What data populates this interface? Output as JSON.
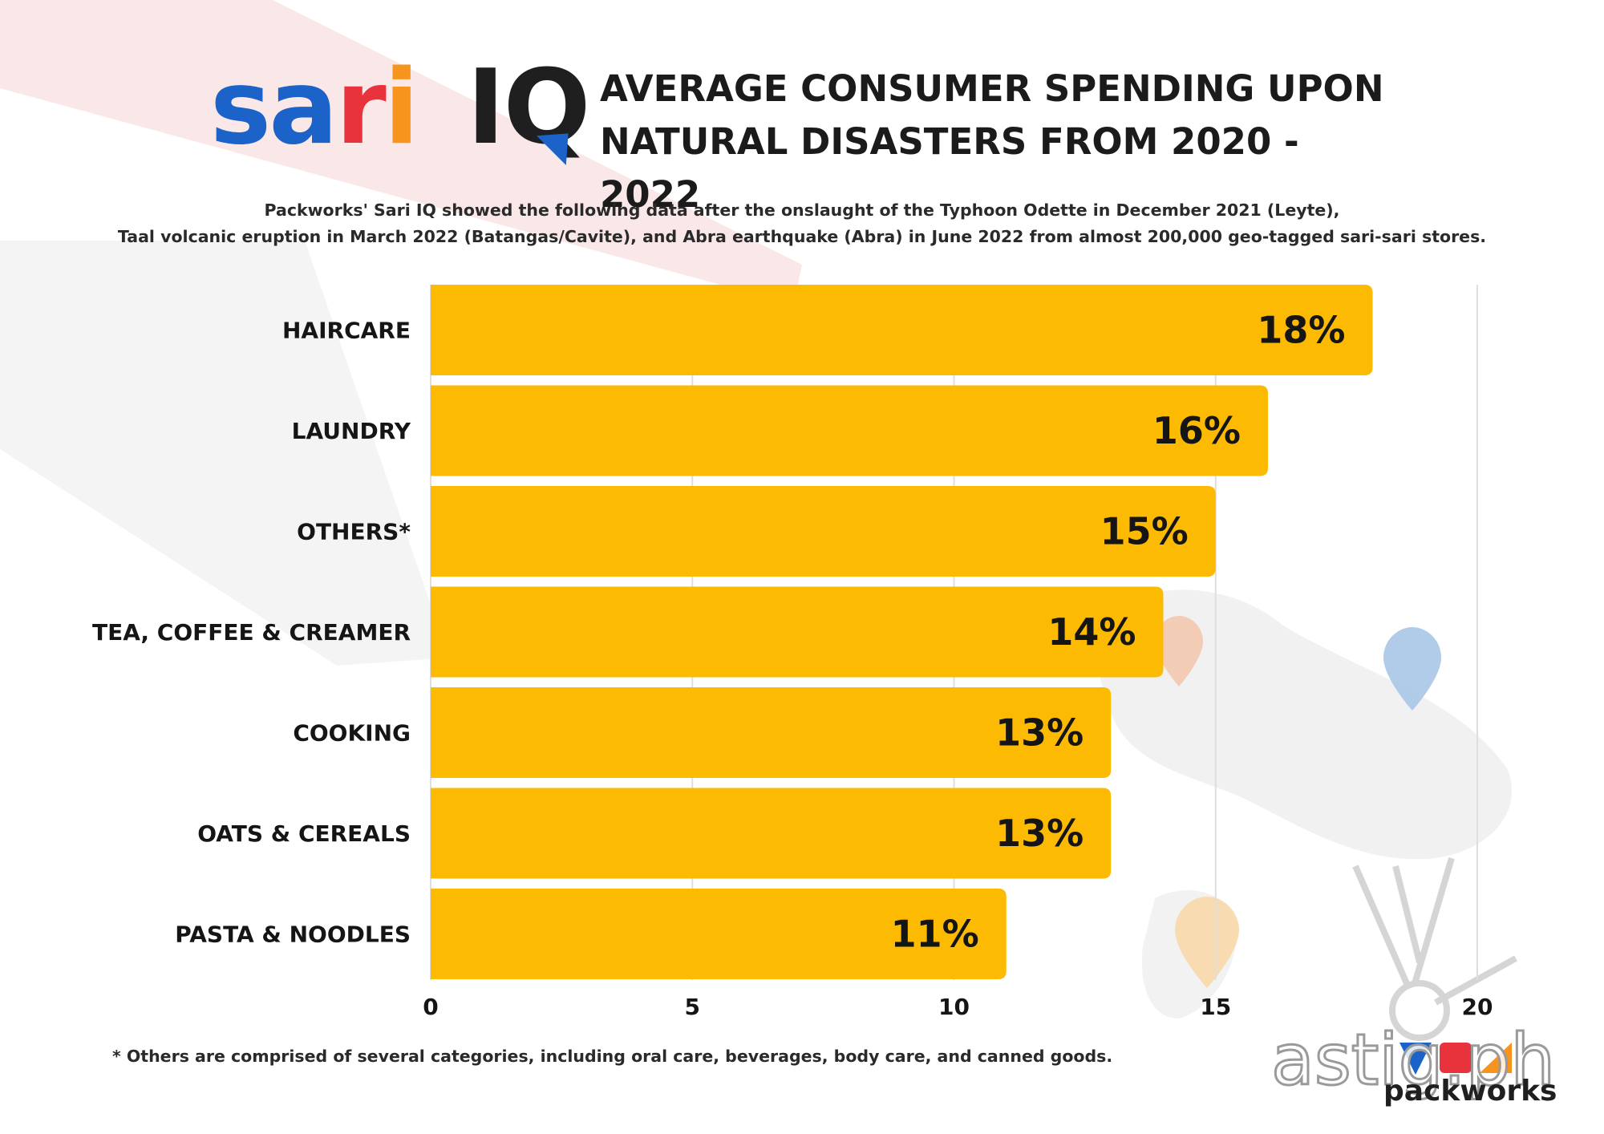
{
  "logo": {
    "part1": "sari",
    "part2": "IQ"
  },
  "header": {
    "title_line1": "AVERAGE CONSUMER SPENDING UPON",
    "title_line2": "NATURAL DISASTERS FROM 2020 - 2022"
  },
  "description": {
    "line1": "Packworks' Sari IQ showed the following data after the onslaught of the Typhoon Odette in December 2021 (Leyte),",
    "line2": "Taal volcanic eruption in March 2022 (Batangas/Cavite), and Abra earthquake (Abra) in June 2022 from almost 200,000 geo-tagged sari-sari stores."
  },
  "chart_data": {
    "type": "bar",
    "orientation": "horizontal",
    "title": "AVERAGE CONSUMER SPENDING UPON NATURAL DISASTERS FROM 2020 - 2022",
    "categories": [
      "HAIRCARE",
      "LAUNDRY",
      "OTHERS*",
      "TEA, COFFEE & CREAMER",
      "COOKING",
      "OATS & CEREALS",
      "PASTA & NOODLES"
    ],
    "values": [
      18,
      16,
      15,
      14,
      13,
      13,
      11
    ],
    "value_labels": [
      "18%",
      "16%",
      "15%",
      "14%",
      "13%",
      "13%",
      "11%"
    ],
    "xlabel": "",
    "ylabel": "",
    "xlim": [
      0,
      20
    ],
    "xticks": [
      "0",
      "5",
      "10",
      "15",
      "20"
    ],
    "grid": "vertical",
    "legend": "none",
    "bar_color": "#fcba03"
  },
  "footnote": "* Others are comprised of several categories, including oral care, beverages, body care, and canned goods.",
  "brand": {
    "name": "packworks"
  },
  "watermark": "astig.ph",
  "colors": {
    "logo_blue": "#1c63c9",
    "logo_red": "#e8323c",
    "logo_orange": "#f7941d",
    "bar": "#fcba03",
    "text": "#1b1b1b"
  }
}
